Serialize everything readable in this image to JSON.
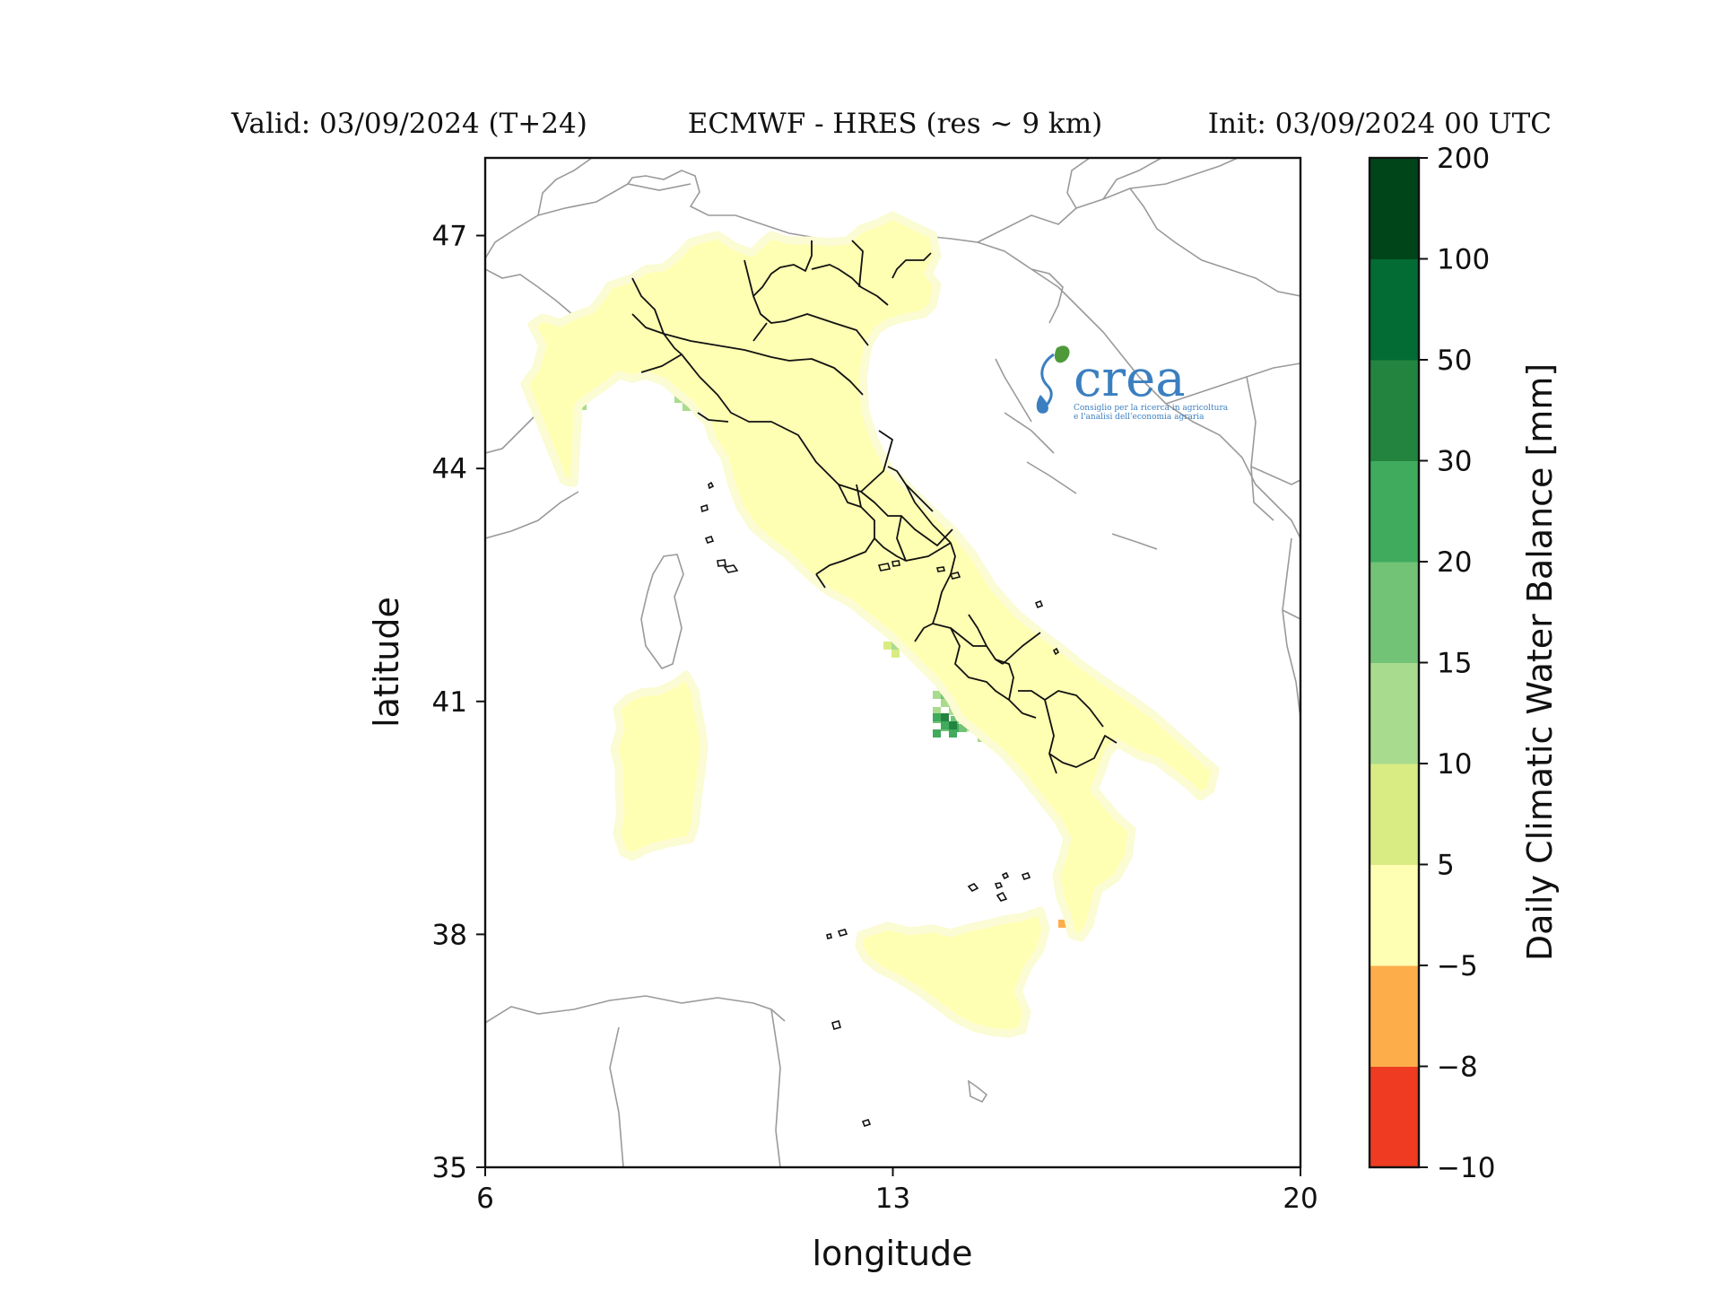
{
  "header": {
    "valid": "Valid: 03/09/2024 (T+24)",
    "model": "ECMWF - HRES (res ~ 9 km)",
    "init": "Init: 03/09/2024 00 UTC"
  },
  "chart_data": {
    "type": "heatmap",
    "xlabel": "longitude",
    "ylabel": "latitude",
    "xlim": [
      6,
      20
    ],
    "ylim": [
      35,
      48
    ],
    "xticks": [
      "6",
      "13",
      "20"
    ],
    "yticks": [
      "35",
      "38",
      "41",
      "44",
      "47"
    ],
    "colorbar": {
      "label": "Daily Climatic Water Balance [mm]",
      "boundaries": [
        "−10",
        "−8",
        "−5",
        "5",
        "10",
        "15",
        "20",
        "30",
        "50",
        "100",
        "200"
      ],
      "colors": [
        "#ee3b22",
        "#fdae4b",
        "#ffffb3",
        "#d9ec84",
        "#a9db8e",
        "#73c377",
        "#40aa5d",
        "#23843f",
        "#036b34",
        "#00441a"
      ]
    },
    "land_color": "#ffffb3",
    "wet_color": "#a9db8e",
    "border_color": "#111111",
    "neighbor_color": "#9a9a9a"
  },
  "logo": {
    "word": "crea",
    "line1": "Consiglio per la ricerca in agricoltura",
    "line2": "e l'analisi dell'economia agraria"
  }
}
